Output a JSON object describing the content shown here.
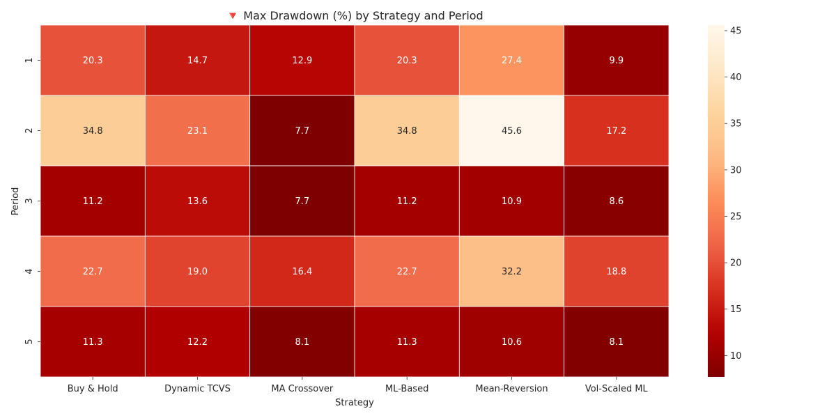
{
  "chart_data": {
    "type": "heatmap",
    "title": "🔻 Max Drawdown (%) by Strategy and Period",
    "xlabel": "Strategy",
    "ylabel": "Period",
    "columns": [
      "Buy & Hold",
      "Dynamic TCVS",
      "MA Crossover",
      "ML-Based",
      "Mean-Reversion",
      "Vol-Scaled ML"
    ],
    "rows": [
      "1",
      "2",
      "3",
      "4",
      "5"
    ],
    "values": [
      [
        20.3,
        14.7,
        12.9,
        20.3,
        27.4,
        9.9
      ],
      [
        34.8,
        23.1,
        7.7,
        34.8,
        45.6,
        17.2
      ],
      [
        11.2,
        13.6,
        7.7,
        11.2,
        10.9,
        8.6
      ],
      [
        22.7,
        19.0,
        16.4,
        22.7,
        32.2,
        18.8
      ],
      [
        11.3,
        12.2,
        8.1,
        11.3,
        10.6,
        8.1
      ]
    ],
    "value_format": "0.0",
    "colormap": "OrRd_r",
    "colorbar": {
      "range": [
        7.7,
        45.6
      ],
      "ticks": [
        10,
        15,
        20,
        25,
        30,
        35,
        40,
        45
      ]
    },
    "colors": {
      "low": "#7f0000",
      "high": "#fff7ec"
    }
  }
}
